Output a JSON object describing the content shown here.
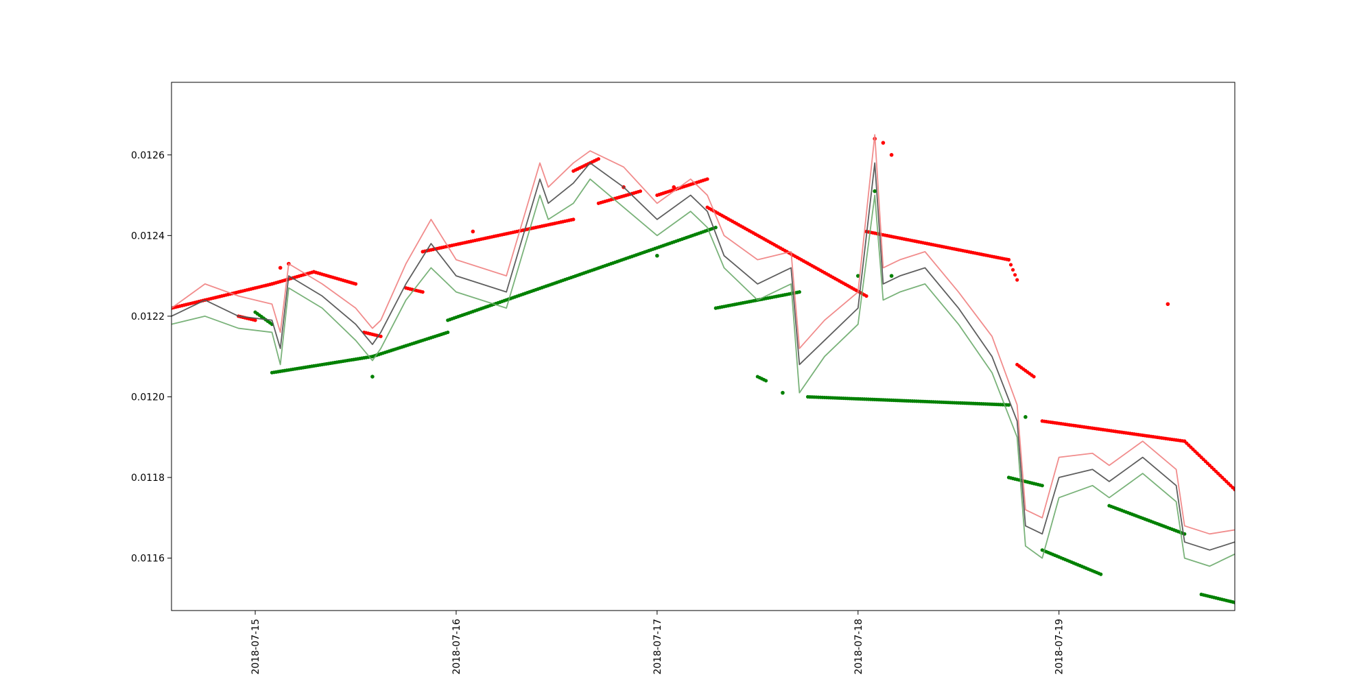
{
  "chart_data": {
    "type": "line",
    "title": "",
    "xlabel": "",
    "ylabel": "",
    "grid": false,
    "legend": "none",
    "xlim": [
      "2018-07-14 14:00",
      "2018-07-19 21:00"
    ],
    "ylim": [
      0.01147,
      0.01278
    ],
    "x_ticks": [
      "2018-07-15",
      "2018-07-16",
      "2018-07-17",
      "2018-07-18",
      "2018-07-19"
    ],
    "y_ticks": [
      "0.0116",
      "0.0118",
      "0.0120",
      "0.0122",
      "0.0124",
      "0.0126"
    ],
    "colors": {
      "price": "#555555",
      "high": "#f08080",
      "low": "#6aaa6a",
      "resistance": "#ff0000",
      "support": "#008000"
    },
    "price_series": {
      "x": [
        "2018-07-14 14:00",
        "2018-07-14 18:00",
        "2018-07-14 22:00",
        "2018-07-15 02:00",
        "2018-07-15 03:00",
        "2018-07-15 04:00",
        "2018-07-15 08:00",
        "2018-07-15 12:00",
        "2018-07-15 14:00",
        "2018-07-15 15:00",
        "2018-07-15 18:00",
        "2018-07-15 21:00",
        "2018-07-16 00:00",
        "2018-07-16 06:00",
        "2018-07-16 10:00",
        "2018-07-16 11:00",
        "2018-07-16 14:00",
        "2018-07-16 16:00",
        "2018-07-16 20:00",
        "2018-07-17 00:00",
        "2018-07-17 04:00",
        "2018-07-17 06:00",
        "2018-07-17 08:00",
        "2018-07-17 12:00",
        "2018-07-17 16:00",
        "2018-07-17 17:00",
        "2018-07-17 20:00",
        "2018-07-18 00:00",
        "2018-07-18 02:00",
        "2018-07-18 03:00",
        "2018-07-18 05:00",
        "2018-07-18 08:00",
        "2018-07-18 12:00",
        "2018-07-18 16:00",
        "2018-07-18 19:00",
        "2018-07-18 20:00",
        "2018-07-18 22:00",
        "2018-07-19 00:00",
        "2018-07-19 04:00",
        "2018-07-19 06:00",
        "2018-07-19 10:00",
        "2018-07-19 14:00",
        "2018-07-19 15:00",
        "2018-07-19 18:00",
        "2018-07-19 21:00"
      ],
      "close": [
        0.0122,
        0.01224,
        0.0122,
        0.01219,
        0.01212,
        0.0123,
        0.01225,
        0.01218,
        0.01213,
        0.01216,
        0.01228,
        0.01238,
        0.0123,
        0.01226,
        0.01254,
        0.01248,
        0.01253,
        0.01258,
        0.01252,
        0.01244,
        0.0125,
        0.01246,
        0.01235,
        0.01228,
        0.01232,
        0.01208,
        0.01214,
        0.01222,
        0.01258,
        0.01228,
        0.0123,
        0.01232,
        0.01222,
        0.0121,
        0.01194,
        0.01168,
        0.01166,
        0.0118,
        0.01182,
        0.01179,
        0.01185,
        0.01178,
        0.01164,
        0.01162,
        0.01164
      ],
      "high": [
        0.01222,
        0.01228,
        0.01225,
        0.01223,
        0.01216,
        0.01233,
        0.01228,
        0.01222,
        0.01217,
        0.01219,
        0.01233,
        0.01244,
        0.01234,
        0.0123,
        0.01258,
        0.01252,
        0.01258,
        0.01261,
        0.01257,
        0.01248,
        0.01254,
        0.0125,
        0.0124,
        0.01234,
        0.01236,
        0.01212,
        0.01219,
        0.01226,
        0.01265,
        0.01232,
        0.01234,
        0.01236,
        0.01226,
        0.01215,
        0.01198,
        0.01172,
        0.0117,
        0.01185,
        0.01186,
        0.01183,
        0.01189,
        0.01182,
        0.01168,
        0.01166,
        0.01167
      ],
      "low": [
        0.01218,
        0.0122,
        0.01217,
        0.01216,
        0.01208,
        0.01227,
        0.01222,
        0.01214,
        0.01209,
        0.01212,
        0.01224,
        0.01232,
        0.01226,
        0.01222,
        0.0125,
        0.01244,
        0.01248,
        0.01254,
        0.01247,
        0.0124,
        0.01246,
        0.01242,
        0.01232,
        0.01224,
        0.01228,
        0.01201,
        0.0121,
        0.01218,
        0.0125,
        0.01224,
        0.01226,
        0.01228,
        0.01218,
        0.01206,
        0.0119,
        0.01163,
        0.0116,
        0.01175,
        0.01178,
        0.01175,
        0.01181,
        0.01174,
        0.0116,
        0.01158,
        0.01161
      ]
    },
    "resistance_segments": [
      {
        "x": [
          "2018-07-14 14:00",
          "2018-07-15 02:00"
        ],
        "y": [
          0.01222,
          0.01228
        ]
      },
      {
        "x": [
          "2018-07-14 22:00",
          "2018-07-15 00:00"
        ],
        "y": [
          0.0122,
          0.01219
        ]
      },
      {
        "x": [
          "2018-07-15 02:00",
          "2018-07-15 07:00",
          "2018-07-15 12:00"
        ],
        "y": [
          0.01228,
          0.01231,
          0.01228
        ]
      },
      {
        "x": [
          "2018-07-15 13:00",
          "2018-07-15 15:00"
        ],
        "y": [
          0.01216,
          0.01215
        ]
      },
      {
        "x": [
          "2018-07-15 18:00",
          "2018-07-15 20:00"
        ],
        "y": [
          0.01227,
          0.01226
        ]
      },
      {
        "x": [
          "2018-07-15 20:00",
          "2018-07-16 14:00"
        ],
        "y": [
          0.01236,
          0.01244
        ]
      },
      {
        "x": [
          "2018-07-16 14:00",
          "2018-07-16 17:00"
        ],
        "y": [
          0.01256,
          0.01259
        ]
      },
      {
        "x": [
          "2018-07-16 17:00",
          "2018-07-16 22:00"
        ],
        "y": [
          0.01248,
          0.01251
        ]
      },
      {
        "x": [
          "2018-07-17 00:00",
          "2018-07-17 06:00"
        ],
        "y": [
          0.0125,
          0.01254
        ]
      },
      {
        "x": [
          "2018-07-17 06:00",
          "2018-07-18 01:00"
        ],
        "y": [
          0.01247,
          0.01225
        ]
      },
      {
        "x": [
          "2018-07-18 01:00",
          "2018-07-18 18:00"
        ],
        "y": [
          0.01241,
          0.01234
        ]
      },
      {
        "x": [
          "2018-07-18 18:00",
          "2018-07-18 19:00"
        ],
        "y": [
          0.01234,
          0.01229
        ]
      },
      {
        "x": [
          "2018-07-18 19:00",
          "2018-07-18 21:00"
        ],
        "y": [
          0.01208,
          0.01205
        ]
      },
      {
        "x": [
          "2018-07-18 22:00",
          "2018-07-19 15:00"
        ],
        "y": [
          0.01194,
          0.01189
        ]
      },
      {
        "x": [
          "2018-07-19 15:00",
          "2018-07-19 21:00"
        ],
        "y": [
          0.01189,
          0.01177
        ]
      }
    ],
    "support_segments": [
      {
        "x": [
          "2018-07-15 00:00",
          "2018-07-15 02:00"
        ],
        "y": [
          0.01221,
          0.01218
        ]
      },
      {
        "x": [
          "2018-07-15 02:00",
          "2018-07-15 14:00"
        ],
        "y": [
          0.01206,
          0.0121
        ]
      },
      {
        "x": [
          "2018-07-15 14:00",
          "2018-07-15 23:00"
        ],
        "y": [
          0.0121,
          0.01216
        ]
      },
      {
        "x": [
          "2018-07-15 23:00",
          "2018-07-17 07:00"
        ],
        "y": [
          0.01219,
          0.01242
        ]
      },
      {
        "x": [
          "2018-07-17 07:00",
          "2018-07-17 17:00"
        ],
        "y": [
          0.01222,
          0.01226
        ]
      },
      {
        "x": [
          "2018-07-17 12:00",
          "2018-07-17 13:00"
        ],
        "y": [
          0.01205,
          0.01204
        ]
      },
      {
        "x": [
          "2018-07-17 18:00",
          "2018-07-18 18:00"
        ],
        "y": [
          0.012,
          0.01198
        ]
      },
      {
        "x": [
          "2018-07-18 18:00",
          "2018-07-18 22:00"
        ],
        "y": [
          0.0118,
          0.01178
        ]
      },
      {
        "x": [
          "2018-07-18 22:00",
          "2018-07-19 05:00"
        ],
        "y": [
          0.01162,
          0.01156
        ]
      },
      {
        "x": [
          "2018-07-19 06:00",
          "2018-07-19 15:00"
        ],
        "y": [
          0.01173,
          0.01166
        ]
      },
      {
        "x": [
          "2018-07-19 17:00",
          "2018-07-19 21:00"
        ],
        "y": [
          0.01151,
          0.01149
        ]
      }
    ],
    "resistance_points": {
      "x": [
        "2018-07-15 03:00",
        "2018-07-15 04:00",
        "2018-07-16 02:00",
        "2018-07-16 20:00",
        "2018-07-17 02:00",
        "2018-07-18 02:00",
        "2018-07-18 03:00",
        "2018-07-18 04:00",
        "2018-07-19 13:00"
      ],
      "y": [
        0.01232,
        0.01233,
        0.01241,
        0.01252,
        0.01252,
        0.01264,
        0.01263,
        0.0126,
        0.01223
      ]
    },
    "support_points": {
      "x": [
        "2018-07-15 14:00",
        "2018-07-17 00:00",
        "2018-07-17 15:00",
        "2018-07-18 00:00",
        "2018-07-18 02:00",
        "2018-07-18 04:00",
        "2018-07-18 20:00"
      ],
      "y": [
        0.01205,
        0.01235,
        0.01201,
        0.0123,
        0.01251,
        0.0123,
        0.01195
      ]
    }
  }
}
